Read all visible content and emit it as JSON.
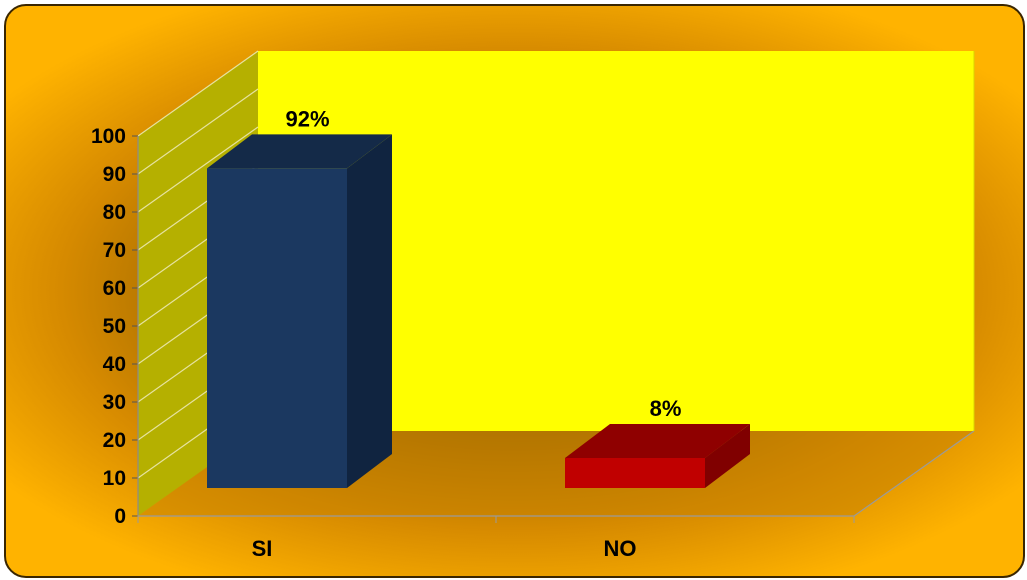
{
  "chart_data": {
    "type": "bar",
    "categories": [
      "SI",
      "NO"
    ],
    "values": [
      92,
      8
    ],
    "data_labels": [
      "92%",
      "8%"
    ],
    "ylim": [
      0,
      100
    ],
    "yticks": [
      0,
      10,
      20,
      30,
      40,
      50,
      60,
      70,
      80,
      90,
      100
    ],
    "title": "",
    "xlabel": "",
    "ylabel": "",
    "grid": true,
    "legend": "none",
    "style": "3d-column"
  },
  "colors": {
    "back_wall": "#ffff00",
    "side_wall": "#b5b000",
    "floor": "#c98400",
    "grid_lines": "#e6e2a0",
    "bar_si_front": "#1b3860",
    "bar_si_top": "#142a48",
    "bar_si_side": "#102440",
    "bar_no_front": "#c00000",
    "bar_no_top": "#8f0000",
    "bar_no_side": "#800000"
  }
}
